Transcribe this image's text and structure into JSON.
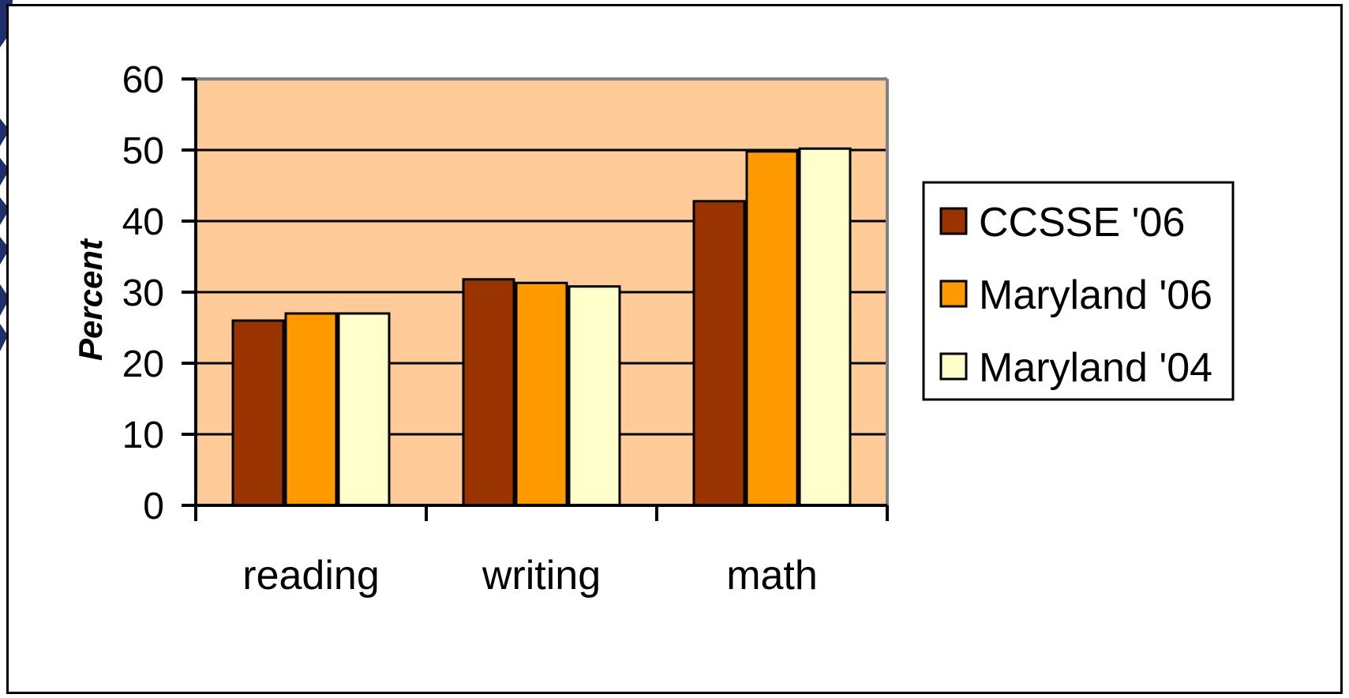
{
  "chart_data": {
    "type": "bar",
    "categories": [
      "reading",
      "writing",
      "math"
    ],
    "series": [
      {
        "name": "CCSSE '06",
        "values": [
          26,
          31.8,
          42.8
        ],
        "color": "#993300"
      },
      {
        "name": "Maryland '06",
        "values": [
          27,
          31.3,
          49.8
        ],
        "color": "#FF9900"
      },
      {
        "name": "Maryland '04",
        "values": [
          27,
          30.8,
          50.2
        ],
        "color": "#FFFFCC"
      }
    ],
    "xlabel": "",
    "ylabel": "Percent",
    "ylim": [
      0,
      60
    ],
    "yticks": [
      "0",
      "10",
      "20",
      "30",
      "40",
      "50",
      "60"
    ],
    "grid": true,
    "legend": "right",
    "plot_background": "#FFCC99"
  }
}
